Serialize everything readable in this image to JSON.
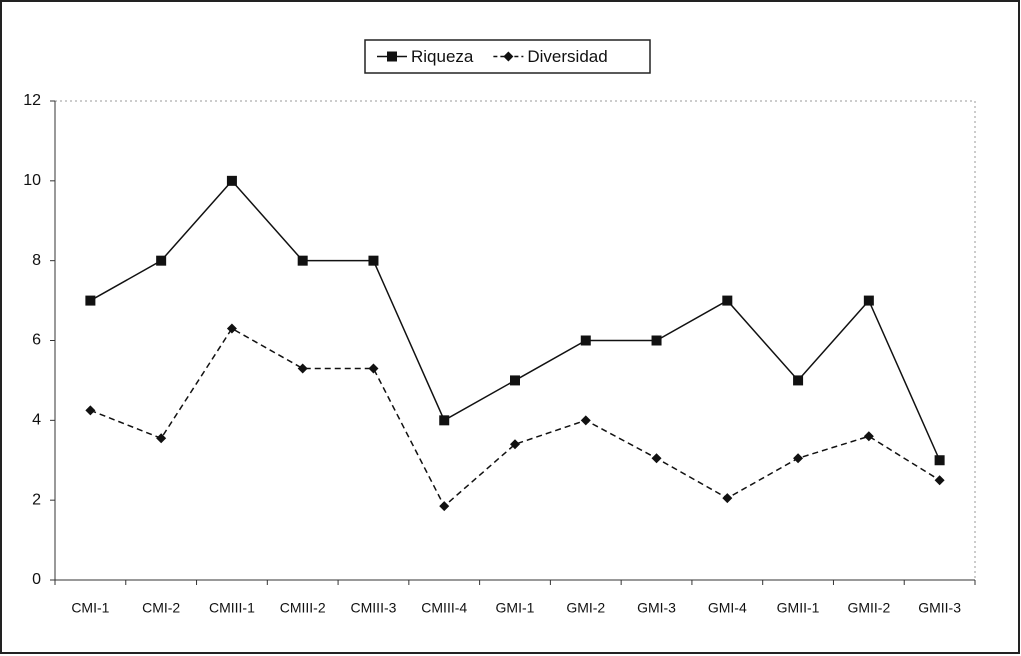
{
  "chart_data": {
    "type": "line",
    "categories": [
      "CMI-1",
      "CMI-2",
      "CMIII-1",
      "CMIII-2",
      "CMIII-3",
      "CMIII-4",
      "GMI-1",
      "GMI-2",
      "GMI-3",
      "GMI-4",
      "GMII-1",
      "GMII-2",
      "GMII-3"
    ],
    "series": [
      {
        "name": "Riqueza",
        "color": "#111111",
        "line_style": "solid",
        "marker": "square",
        "values": [
          7,
          8,
          10,
          8,
          8,
          4,
          5,
          6,
          6,
          7,
          5,
          7,
          3
        ]
      },
      {
        "name": "Diversidad",
        "color": "#111111",
        "line_style": "dashed",
        "marker": "diamond",
        "values": [
          4.25,
          3.55,
          6.3,
          5.3,
          5.3,
          1.85,
          3.4,
          4.0,
          3.05,
          2.05,
          3.05,
          3.6,
          2.5
        ]
      }
    ],
    "ylim": [
      0,
      12
    ],
    "yticks": [
      0,
      2,
      4,
      6,
      8,
      10,
      12
    ],
    "grid": false,
    "legend": "top"
  }
}
